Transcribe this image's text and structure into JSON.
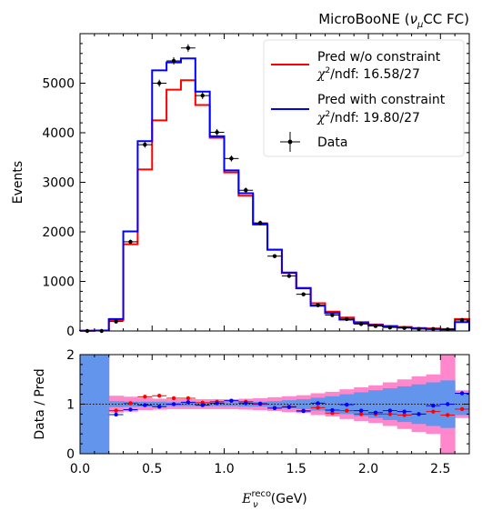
{
  "chart_data": [
    {
      "type": "histogram",
      "title": "MicroBooNE (νμCC FC)",
      "ylabel": "Events",
      "ylim": [
        0,
        6000
      ],
      "yticks": [
        0,
        1000,
        2000,
        3000,
        4000,
        5000
      ],
      "xlim": [
        0,
        2.7
      ],
      "bin_edges": [
        0.0,
        0.1,
        0.2,
        0.3,
        0.4,
        0.5,
        0.6,
        0.7,
        0.8,
        0.9,
        1.0,
        1.1,
        1.2,
        1.3,
        1.4,
        1.5,
        1.6,
        1.7,
        1.8,
        1.9,
        2.0,
        2.1,
        2.2,
        2.3,
        2.4,
        2.5,
        2.6,
        2.7
      ],
      "legend_position": "upper-right",
      "series": [
        {
          "name": "Pred w/o constraint",
          "chi2_label": "χ²/ndf: 16.58/27",
          "color": "#ff0000",
          "values": [
            5,
            10,
            220,
            1750,
            3260,
            4250,
            4870,
            5060,
            4560,
            3900,
            3200,
            2730,
            2170,
            1640,
            1170,
            870,
            560,
            390,
            270,
            180,
            130,
            100,
            80,
            60,
            50,
            40,
            240
          ]
        },
        {
          "name": "Pred with constraint",
          "chi2_label": "χ²/ndf: 19.80/27",
          "color": "#0000ff",
          "values": [
            5,
            10,
            240,
            2010,
            3830,
            5260,
            5420,
            5500,
            4830,
            3930,
            3240,
            2780,
            2150,
            1640,
            1180,
            860,
            510,
            360,
            230,
            160,
            120,
            90,
            70,
            50,
            40,
            30,
            180
          ]
        },
        {
          "name": "Data",
          "color": "#000000",
          "values": [
            0,
            0,
            190,
            1800,
            3760,
            5000,
            5450,
            5710,
            4750,
            4010,
            3480,
            2840,
            2180,
            1510,
            1110,
            740,
            520,
            320,
            240,
            140,
            100,
            70,
            60,
            40,
            40,
            30,
            220
          ],
          "errors": [
            0,
            0,
            14,
            42,
            61,
            71,
            74,
            76,
            69,
            63,
            59,
            53,
            47,
            39,
            33,
            27,
            23,
            18,
            15,
            12,
            10,
            8,
            8,
            6,
            6,
            5,
            15
          ]
        }
      ]
    },
    {
      "type": "ratio",
      "ylabel": "Data / Pred",
      "xlabel": "E_ν^reco (GeV)",
      "ylim": [
        0,
        2
      ],
      "yticks": [
        0,
        1,
        2
      ],
      "xticks": [
        0.0,
        0.5,
        1.0,
        1.5,
        2.0,
        2.5
      ],
      "xtick_labels": [
        "0.0",
        "0.5",
        "1.0",
        "1.5",
        "2.0",
        "2.5"
      ],
      "reference_line": 1,
      "band_unconstrained": {
        "color": "#ff88cc",
        "half_widths": [
          1.0,
          1.0,
          0.17,
          0.15,
          0.12,
          0.11,
          0.1,
          0.1,
          0.1,
          0.1,
          0.1,
          0.11,
          0.12,
          0.14,
          0.16,
          0.18,
          0.22,
          0.25,
          0.3,
          0.34,
          0.38,
          0.44,
          0.5,
          0.56,
          0.6,
          1.0,
          0.28
        ]
      },
      "band_constrained": {
        "color": "#6495ed",
        "half_widths": [
          1.0,
          1.0,
          0.06,
          0.05,
          0.05,
          0.05,
          0.04,
          0.04,
          0.04,
          0.04,
          0.04,
          0.05,
          0.05,
          0.06,
          0.08,
          0.1,
          0.13,
          0.16,
          0.2,
          0.24,
          0.28,
          0.32,
          0.36,
          0.4,
          0.44,
          0.48,
          0.22
        ]
      },
      "ratio_unconstrained": {
        "color": "#ff0000",
        "values": [
          null,
          null,
          0.87,
          1.02,
          1.15,
          1.17,
          1.12,
          1.12,
          1.03,
          1.05,
          1.07,
          1.05,
          1.0,
          0.92,
          0.95,
          0.87,
          0.93,
          0.82,
          0.87,
          0.8,
          0.8,
          0.8,
          0.78,
          0.8,
          0.85,
          0.78,
          0.9
        ]
      },
      "ratio_constrained": {
        "color": "#0000ff",
        "values": [
          null,
          null,
          0.79,
          0.89,
          0.98,
          0.95,
          1.0,
          1.04,
          0.98,
          1.02,
          1.07,
          1.02,
          1.01,
          0.92,
          0.94,
          0.86,
          1.02,
          0.88,
          0.99,
          0.87,
          0.83,
          0.87,
          0.85,
          0.8,
          0.97,
          1.0,
          1.22
        ]
      }
    }
  ]
}
